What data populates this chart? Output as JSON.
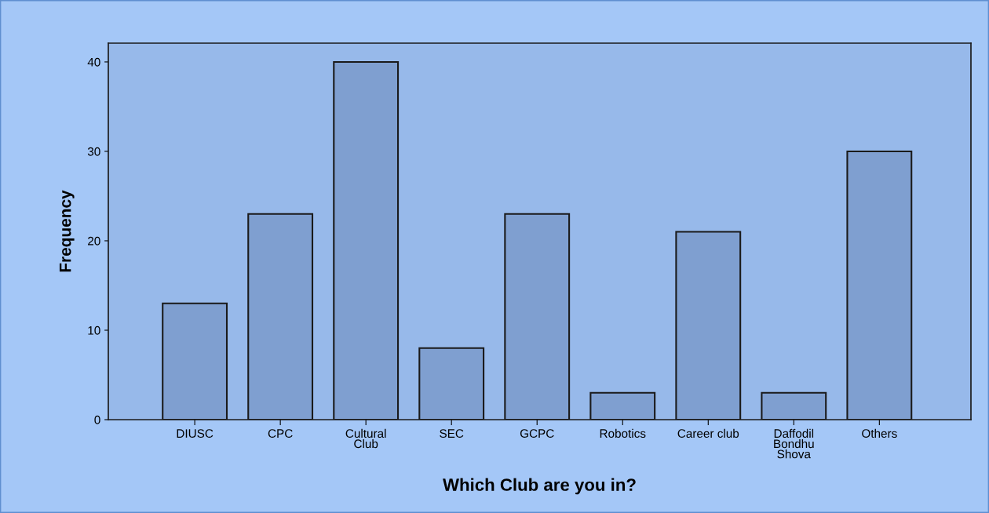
{
  "chart_data": {
    "type": "bar",
    "xlabel": "Which Club are you in?",
    "ylabel": "Frequency",
    "categories": [
      "DIUSC",
      "CPC",
      "Cultural\nClub",
      "SEC",
      "GCPC",
      "Robotics",
      "Career club",
      "Daffodil\nBondhu\nShova",
      "Others"
    ],
    "values": [
      13,
      23,
      40,
      8,
      23,
      3,
      21,
      3,
      30
    ],
    "color": "#7f9fd0",
    "ylim": [
      0,
      42.1
    ],
    "yticks": [
      0,
      10,
      20,
      30,
      40
    ],
    "grid": false,
    "legend": false
  }
}
